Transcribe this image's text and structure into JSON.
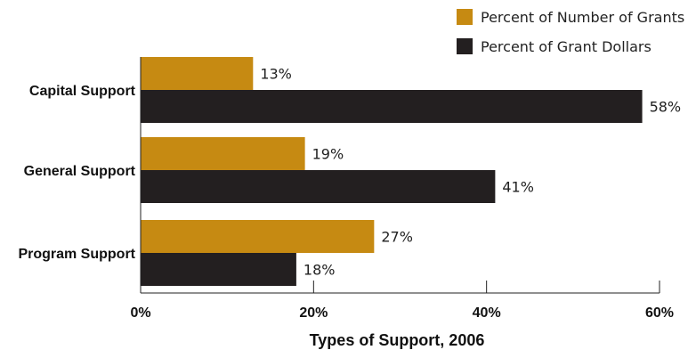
{
  "chart_data": {
    "type": "bar",
    "orientation": "horizontal",
    "categories": [
      "Capital Support",
      "General Support",
      "Program Support"
    ],
    "series": [
      {
        "name": "Percent of Number of Grants",
        "color": "#c68a12",
        "values": [
          13,
          19,
          27
        ],
        "labels": [
          "13%",
          "19%",
          "27%"
        ]
      },
      {
        "name": "Percent of Grant Dollars",
        "color": "#231f20",
        "values": [
          58,
          41,
          18
        ],
        "labels": [
          "58%",
          "41%",
          "18%"
        ]
      }
    ],
    "xlabel": "Types of Support, 2006",
    "xlim": [
      0,
      60
    ],
    "xticks": [
      0,
      20,
      40,
      60
    ],
    "xtick_labels": [
      "0%",
      "20%",
      "40%",
      "60%"
    ],
    "grid": false,
    "legend_position": "top-right"
  }
}
